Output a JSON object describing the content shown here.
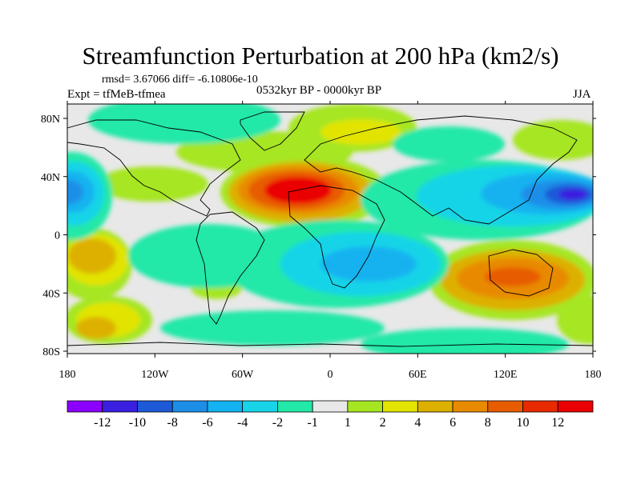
{
  "title": "Streamfunction Perturbation at 200 hPa (km2/s)",
  "stats_line": "rmsd= 3.67066 diff= -6.10806e-10",
  "experiment": "Expt = tfMeB-tfmea",
  "period": "0532kyr BP - 0000kyr BP",
  "season": "JJA",
  "lon_ticks": [
    "180",
    "120W",
    "60W",
    "0",
    "60E",
    "120E",
    "180"
  ],
  "lat_ticks": [
    "80N",
    "40N",
    "0",
    "40S",
    "80S"
  ],
  "colorbar": {
    "labels": [
      "-12",
      "-10",
      "-8",
      "-6",
      "-4",
      "-2",
      "-1",
      "1",
      "2",
      "4",
      "6",
      "8",
      "10",
      "12"
    ],
    "colors": [
      "#8b00ff",
      "#3a1fe0",
      "#1e5ad8",
      "#1c8ee8",
      "#13b2f0",
      "#18d4e8",
      "#22e8a8",
      "#e8e8e8",
      "#a6e620",
      "#e2e400",
      "#ddb000",
      "#e88a00",
      "#e85c00",
      "#e82a00",
      "#ea0000"
    ]
  },
  "colors": {
    "land_outline": "#000000",
    "background": "#ffffff"
  }
}
